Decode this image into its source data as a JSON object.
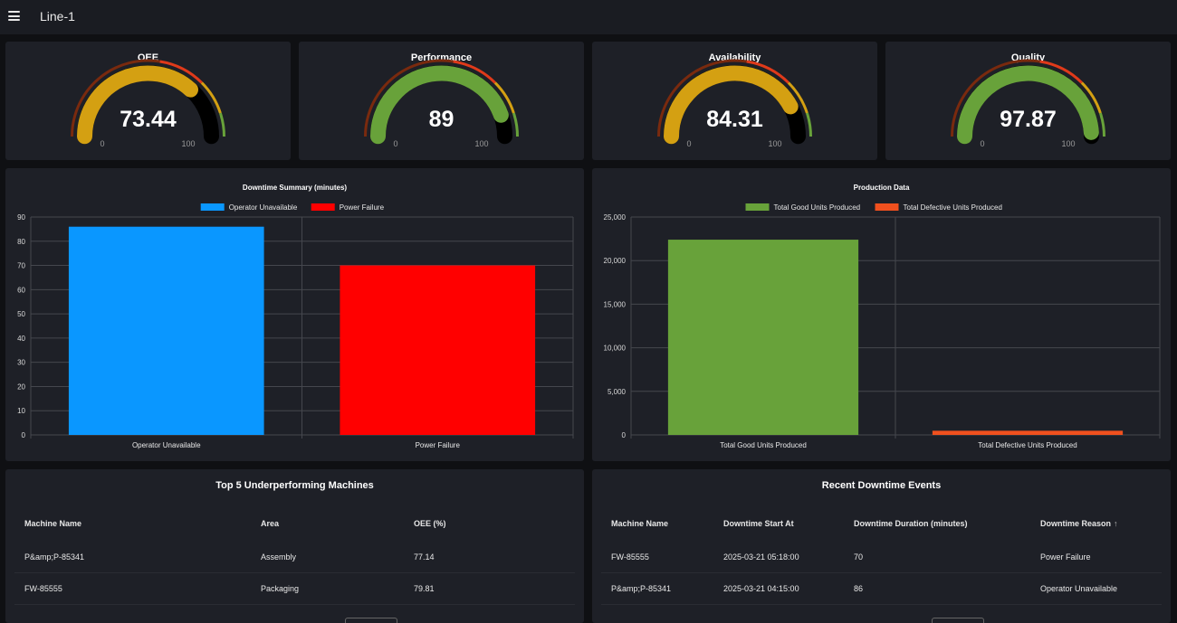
{
  "app": {
    "title": "Line-1",
    "menu_icon": "hamburger-menu-icon"
  },
  "gauges": [
    {
      "label": "OEE",
      "value": "73.44",
      "fraction": 0.7344,
      "min": "0",
      "max": "100",
      "color": "#d4a012"
    },
    {
      "label": "Performance",
      "value": "89",
      "fraction": 0.89,
      "min": "0",
      "max": "100",
      "color": "#68a23a"
    },
    {
      "label": "Availability",
      "value": "84.31",
      "fraction": 0.8431,
      "min": "0",
      "max": "100",
      "color": "#d4a012"
    },
    {
      "label": "Quality",
      "value": "97.87",
      "fraction": 0.9787,
      "min": "0",
      "max": "100",
      "color": "#68a23a"
    }
  ],
  "colors": {
    "gauge_bad": "#7a2a0e",
    "gauge_red": "#e03a1a",
    "gauge_warn": "#d4a012",
    "gauge_good": "#68a23a",
    "gauge_rest": "#000000"
  },
  "chart_data": [
    {
      "type": "bar",
      "title": "Downtime Summary (minutes)",
      "categories": [
        "Operator Unavailable",
        "Power Failure"
      ],
      "series": [
        {
          "name": "Operator Unavailable",
          "color": "#0a97ff",
          "values": [
            86,
            null
          ]
        },
        {
          "name": "Power Failure",
          "color": "#ff0000",
          "values": [
            null,
            70
          ]
        }
      ],
      "ylim": [
        0,
        90
      ],
      "yticks": [
        "0",
        "10",
        "20",
        "30",
        "40",
        "50",
        "60",
        "70",
        "80",
        "90"
      ],
      "grid": true,
      "legend": "top-center"
    },
    {
      "type": "bar",
      "title": "Production Data",
      "categories": [
        "Total Good Units Produced",
        "Total Defective Units Produced"
      ],
      "series": [
        {
          "name": "Total Good Units Produced",
          "color": "#68a23a",
          "values": [
            22400,
            null
          ]
        },
        {
          "name": "Total Defective Units Produced",
          "color": "#f0501e",
          "values": [
            null,
            480
          ]
        }
      ],
      "ylim": [
        0,
        25000
      ],
      "yticks": [
        "0",
        "5,000",
        "10,000",
        "15,000",
        "20,000",
        "25,000"
      ],
      "grid": true,
      "legend": "top-center"
    }
  ],
  "tables": {
    "machines": {
      "title": "Top 5 Underperforming Machines",
      "columns": [
        "Machine Name",
        "Area",
        "OEE (%)"
      ],
      "rows": [
        [
          "P&amp;P-85341",
          "Assembly",
          "77.14"
        ],
        [
          "FW-85555",
          "Packaging",
          "79.81"
        ]
      ]
    },
    "events": {
      "title": "Recent Downtime Events",
      "columns": [
        "Machine Name",
        "Downtime Start At",
        "Downtime Duration (minutes)",
        "Downtime Reason"
      ],
      "sort_icon": "arrow-up-icon",
      "sort_glyph": "↑",
      "rows": [
        [
          "FW-85555",
          "2025-03-21 05:18:00",
          "70",
          "Power Failure"
        ],
        [
          "P&amp;P-85341",
          "2025-03-21 04:15:00",
          "86",
          "Operator Unavailable"
        ]
      ]
    }
  }
}
